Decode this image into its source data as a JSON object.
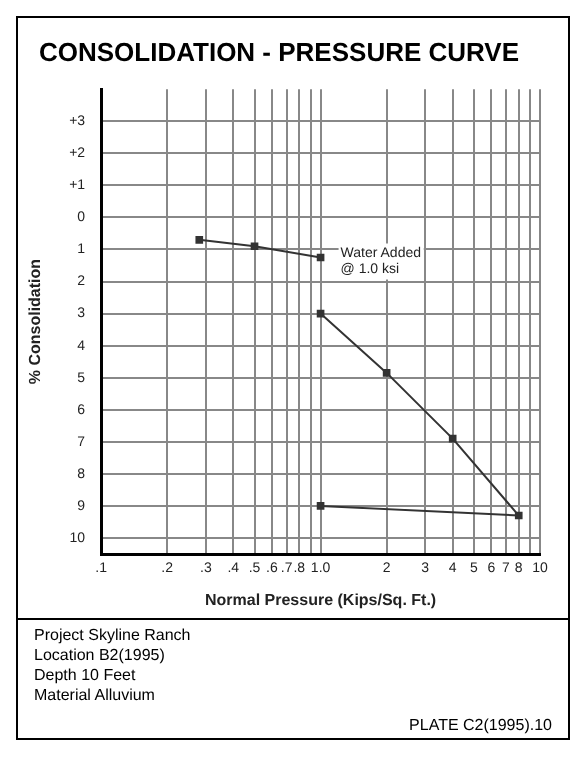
{
  "chart_data": {
    "type": "line",
    "title": "CONSOLIDATION - PRESSURE CURVE",
    "xlabel": "Normal Pressure (Kips/Sq. Ft.)",
    "ylabel": "% Consolidation",
    "log": "x",
    "grid": true,
    "legend": false,
    "marker": "square",
    "line_style": "solid",
    "xlim": [
      0.1,
      10
    ],
    "xticks": [
      {
        "value": 0.1,
        "label": ".1"
      },
      {
        "value": 0.2,
        "label": ".2"
      },
      {
        "value": 0.3,
        "label": ".3"
      },
      {
        "value": 0.4,
        "label": ".4"
      },
      {
        "value": 0.5,
        "label": ".5"
      },
      {
        "value": 0.6,
        "label": ".6"
      },
      {
        "value": 0.7,
        "label": ".7"
      },
      {
        "value": 0.8,
        "label": ".8"
      },
      {
        "value": 0.9,
        "label": null
      },
      {
        "value": 1,
        "label": "1.0"
      },
      2,
      3,
      4,
      5,
      6,
      7,
      8,
      {
        "value": 9,
        "label": null
      },
      10
    ],
    "ylim": [
      10.5,
      -4
    ],
    "yticks": [
      {
        "value": -3,
        "label": "+3"
      },
      {
        "value": -2,
        "label": "+2"
      },
      {
        "value": -1,
        "label": "+1"
      },
      0,
      1,
      2,
      3,
      4,
      5,
      6,
      7,
      8,
      9,
      10
    ],
    "series": [
      {
        "color": "#333333",
        "x": [
          0.28,
          0.5,
          1.0
        ],
        "values": [
          0.7,
          0.9,
          1.25
        ]
      },
      {
        "color": "#333333",
        "x": [
          1.0,
          2,
          4,
          8,
          1.0
        ],
        "values": [
          3.0,
          4.85,
          6.9,
          9.3,
          9.0
        ]
      }
    ],
    "annotations": [
      {
        "text": "Water Added\n@ 1.0 ksi",
        "x": 1.0,
        "y": 1.25
      },
      "Project Skyline Ranch",
      "Location B2(1995)",
      "Depth 10 Feet",
      "Material Alluvium",
      "PLATE C2(1995).10"
    ]
  }
}
